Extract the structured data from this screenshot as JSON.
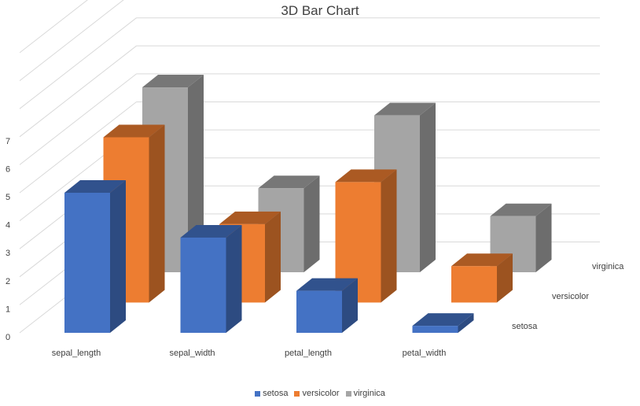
{
  "chart_data": {
    "type": "bar",
    "title": "3D Bar Chart",
    "categories": [
      "sepal_length",
      "sepal_width",
      "petal_length",
      "petal_width"
    ],
    "series": [
      {
        "name": "setosa",
        "color": "#4472C4",
        "values": [
          5.0,
          3.4,
          1.5,
          0.25
        ]
      },
      {
        "name": "versicolor",
        "color": "#ED7D31",
        "values": [
          5.9,
          2.8,
          4.3,
          1.3
        ]
      },
      {
        "name": "virginica",
        "color": "#A5A5A5",
        "values": [
          6.6,
          3.0,
          5.6,
          2.0
        ]
      }
    ],
    "y_ticks": [
      "0",
      "1",
      "2",
      "3",
      "4",
      "5",
      "6",
      "7"
    ],
    "ylim": [
      0,
      10
    ],
    "grid": true,
    "legend_position": "bottom"
  }
}
